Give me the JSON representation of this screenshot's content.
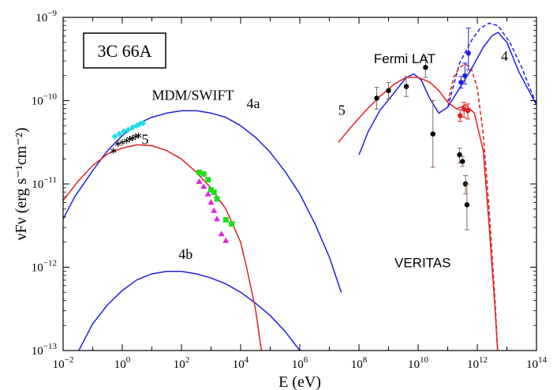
{
  "chart_data": {
    "type": "scatter",
    "source_label": "3C 66A",
    "xlabel": "E (eV)",
    "ylabel": "νFν (erg s⁻¹cm⁻²)",
    "xlim_log10": [
      -2,
      14
    ],
    "ylim_log10": [
      -13,
      -9
    ],
    "log_axes": true,
    "x_tick_exponents": [
      -2,
      0,
      2,
      4,
      6,
      8,
      10,
      12,
      14
    ],
    "y_tick_exponents": [
      -13,
      -12,
      -11,
      -10,
      -9
    ],
    "annotations": [
      {
        "text": "MDM/SWIFT",
        "x": 1.0,
        "y": -9.99,
        "style": "serif"
      },
      {
        "text": "4a",
        "x": 4.2,
        "y": -10.09,
        "style": "serif"
      },
      {
        "text": "5",
        "x": 0.65,
        "y": -10.52,
        "style": "serif"
      },
      {
        "text": "4b",
        "x": 1.9,
        "y": -11.9,
        "style": "serif"
      },
      {
        "text": "Fermi LAT",
        "x": 8.5,
        "y": -9.55,
        "style": "sans"
      },
      {
        "text": "5",
        "x": 7.3,
        "y": -10.17,
        "style": "serif"
      },
      {
        "text": "4",
        "x": 12.8,
        "y": -9.52,
        "style": "serif"
      },
      {
        "text": "VERITAS",
        "x": 9.2,
        "y": -12.0,
        "style": "sans"
      }
    ],
    "colors": {
      "blue": "#1f1fe0",
      "red": "#e01f1f",
      "cyan": "#22dde8",
      "green": "#1ee01e",
      "magenta": "#e81ee8",
      "black": "#000000",
      "errorbar": "#8a6a5a"
    },
    "series": [
      {
        "id": "model-4a",
        "kind": "line",
        "color": "blue",
        "dash": false,
        "points": [
          [
            -2,
            -11.42
          ],
          [
            -1.6,
            -11.15
          ],
          [
            -1,
            -10.84
          ],
          [
            -0.5,
            -10.6
          ],
          [
            0,
            -10.42
          ],
          [
            0.5,
            -10.28
          ],
          [
            1,
            -10.2
          ],
          [
            1.5,
            -10.15
          ],
          [
            2,
            -10.12
          ],
          [
            2.5,
            -10.12
          ],
          [
            3,
            -10.15
          ],
          [
            3.5,
            -10.2
          ],
          [
            4,
            -10.3
          ],
          [
            4.5,
            -10.44
          ],
          [
            5,
            -10.62
          ],
          [
            5.5,
            -10.85
          ],
          [
            6,
            -11.12
          ],
          [
            6.5,
            -11.47
          ],
          [
            7,
            -11.88
          ],
          [
            7.4,
            -12.3
          ]
        ]
      },
      {
        "id": "model-4b",
        "kind": "line",
        "color": "blue",
        "dash": false,
        "points": [
          [
            -1.5,
            -13.02
          ],
          [
            -1,
            -12.68
          ],
          [
            -0.5,
            -12.45
          ],
          [
            0,
            -12.28
          ],
          [
            0.5,
            -12.15
          ],
          [
            1,
            -12.08
          ],
          [
            1.5,
            -12.05
          ],
          [
            2,
            -12.05
          ],
          [
            2.5,
            -12.08
          ],
          [
            3,
            -12.13
          ],
          [
            3.5,
            -12.2
          ],
          [
            4,
            -12.3
          ],
          [
            4.5,
            -12.43
          ],
          [
            5,
            -12.58
          ],
          [
            5.5,
            -12.77
          ],
          [
            6,
            -13.0
          ],
          [
            6.2,
            -13.1
          ]
        ]
      },
      {
        "id": "model-5-synch",
        "kind": "line",
        "color": "red",
        "dash": false,
        "points": [
          [
            -2,
            -11.2
          ],
          [
            -1.5,
            -10.97
          ],
          [
            -1,
            -10.78
          ],
          [
            -0.5,
            -10.64
          ],
          [
            0,
            -10.57
          ],
          [
            0.5,
            -10.53
          ],
          [
            1,
            -10.54
          ],
          [
            1.5,
            -10.6
          ],
          [
            2,
            -10.7
          ],
          [
            2.5,
            -10.86
          ],
          [
            3,
            -11.05
          ],
          [
            3.5,
            -11.3
          ],
          [
            4,
            -11.7
          ],
          [
            4.2,
            -12.0
          ],
          [
            4.5,
            -12.5
          ],
          [
            4.7,
            -13.0
          ]
        ]
      },
      {
        "id": "model-4-ic",
        "kind": "line",
        "color": "blue",
        "dash": false,
        "points": [
          [
            8,
            -10.65
          ],
          [
            8.3,
            -10.38
          ],
          [
            8.7,
            -10.12
          ],
          [
            9.2,
            -9.9
          ],
          [
            9.6,
            -9.72
          ],
          [
            9.85,
            -9.68
          ],
          [
            10.1,
            -9.75
          ],
          [
            10.4,
            -9.98
          ],
          [
            10.7,
            -10.15
          ],
          [
            11,
            -10.08
          ],
          [
            11.4,
            -9.85
          ],
          [
            11.8,
            -9.62
          ],
          [
            12.2,
            -9.36
          ],
          [
            12.5,
            -9.22
          ],
          [
            12.7,
            -9.18
          ],
          [
            13,
            -9.3
          ],
          [
            13.4,
            -9.65
          ],
          [
            14,
            -10.05
          ]
        ]
      },
      {
        "id": "model-4-dashed",
        "kind": "line",
        "color": "blue",
        "dash": true,
        "points": [
          [
            11,
            -10.08
          ],
          [
            11.4,
            -9.55
          ],
          [
            11.8,
            -9.28
          ],
          [
            12.1,
            -9.13
          ],
          [
            12.4,
            -9.07
          ],
          [
            12.7,
            -9.1
          ],
          [
            13.1,
            -9.3
          ],
          [
            13.5,
            -9.6
          ],
          [
            14,
            -10.05
          ]
        ]
      },
      {
        "id": "model-5-ic",
        "kind": "line",
        "color": "red",
        "dash": false,
        "points": [
          [
            7.3,
            -10.5
          ],
          [
            7.7,
            -10.33
          ],
          [
            8.2,
            -10.13
          ],
          [
            8.7,
            -9.95
          ],
          [
            9.2,
            -9.8
          ],
          [
            9.6,
            -9.72
          ],
          [
            10,
            -9.72
          ],
          [
            10.4,
            -9.78
          ],
          [
            10.7,
            -9.88
          ],
          [
            11,
            -10.02
          ],
          [
            11.3,
            -10.1
          ],
          [
            11.6,
            -10.05
          ],
          [
            11.9,
            -10.15
          ],
          [
            12.2,
            -10.6
          ],
          [
            12.4,
            -11.5
          ],
          [
            12.6,
            -12.5
          ],
          [
            12.7,
            -13.1
          ]
        ]
      },
      {
        "id": "model-5-dashed",
        "kind": "line",
        "color": "red",
        "dash": true,
        "points": [
          [
            11,
            -10.02
          ],
          [
            11.2,
            -9.72
          ],
          [
            11.4,
            -9.6
          ],
          [
            11.6,
            -9.56
          ],
          [
            11.8,
            -9.62
          ],
          [
            12,
            -9.85
          ],
          [
            12.2,
            -10.4
          ],
          [
            12.4,
            -11.3
          ],
          [
            12.6,
            -12.4
          ],
          [
            12.7,
            -13.1
          ]
        ]
      },
      {
        "id": "swift-cyan",
        "kind": "markers",
        "marker": "diamond",
        "color": "cyan",
        "points": [
          [
            -0.25,
            -10.43
          ],
          [
            -0.1,
            -10.4
          ],
          [
            0.05,
            -10.37
          ],
          [
            0.2,
            -10.35
          ],
          [
            0.35,
            -10.32
          ],
          [
            0.5,
            -10.3
          ],
          [
            0.6,
            -10.28
          ],
          [
            0.7,
            -10.27
          ]
        ]
      },
      {
        "id": "mdm-black",
        "kind": "markers",
        "marker": "asterisk",
        "color": "black",
        "points": [
          [
            -0.3,
            -10.6
          ],
          [
            -0.15,
            -10.52
          ],
          [
            0,
            -10.5
          ],
          [
            0.15,
            -10.48
          ],
          [
            0.25,
            -10.46
          ],
          [
            0.35,
            -10.45
          ],
          [
            0.45,
            -10.43
          ],
          [
            0.55,
            -10.42
          ]
        ]
      },
      {
        "id": "optical-green",
        "kind": "markers",
        "marker": "square",
        "color": "green",
        "points": [
          [
            2.6,
            -10.86
          ],
          [
            2.75,
            -10.88
          ],
          [
            2.9,
            -10.95
          ],
          [
            3.0,
            -11.07
          ],
          [
            3.1,
            -11.1
          ],
          [
            3.2,
            -11.18
          ],
          [
            3.5,
            -11.43
          ],
          [
            3.7,
            -11.48
          ]
        ]
      },
      {
        "id": "optical-magenta",
        "kind": "markers",
        "marker": "triangle",
        "color": "magenta",
        "points": [
          [
            2.6,
            -10.97
          ],
          [
            2.75,
            -11.03
          ],
          [
            2.9,
            -11.12
          ],
          [
            3.0,
            -11.22
          ],
          [
            3.1,
            -11.32
          ],
          [
            3.2,
            -11.42
          ],
          [
            3.35,
            -11.6
          ],
          [
            3.5,
            -11.68
          ]
        ]
      },
      {
        "id": "fermi-black",
        "kind": "errorbars",
        "color": "black",
        "points": [
          [
            8.6,
            -9.97,
            0.13,
            0.13
          ],
          [
            9.0,
            -9.88,
            0.1,
            0.1
          ],
          [
            9.6,
            -9.83,
            0.12,
            0.12
          ],
          [
            10.25,
            -9.6,
            0.12,
            0.12
          ],
          [
            10.5,
            -10.4,
            0.4,
            0.4
          ]
        ]
      },
      {
        "id": "veritas-black",
        "kind": "errorbars",
        "color": "black",
        "points": [
          [
            11.4,
            -10.65,
            0.08,
            0.1
          ],
          [
            11.5,
            -10.73,
            0.06,
            0.06
          ],
          [
            11.6,
            -11.0,
            0.1,
            0.12
          ],
          [
            11.65,
            -11.25,
            0.25,
            0.3
          ]
        ]
      },
      {
        "id": "veritas-red",
        "kind": "errorbars",
        "color": "red",
        "points": [
          [
            11.42,
            -10.18,
            0.07,
            0.07
          ],
          [
            11.55,
            -10.1,
            0.08,
            0.1
          ],
          [
            11.68,
            -10.12,
            0.08,
            0.1
          ]
        ]
      },
      {
        "id": "veritas-blue",
        "kind": "errorbars",
        "color": "blue",
        "points": [
          [
            11.45,
            -9.78,
            0.07,
            0.07
          ],
          [
            11.58,
            -9.7,
            0.15,
            0.1
          ],
          [
            11.7,
            -9.43,
            0.3,
            0.2
          ]
        ]
      }
    ]
  }
}
